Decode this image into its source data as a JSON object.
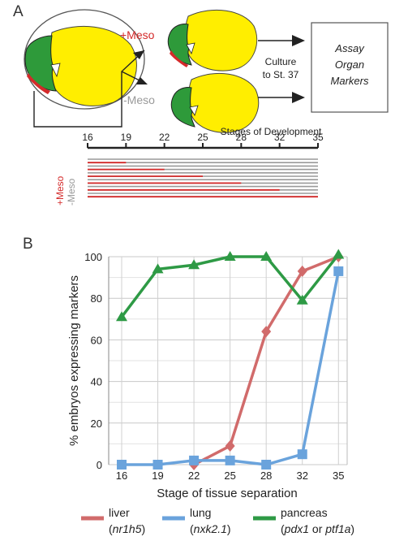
{
  "panel_a": {
    "letter": "A",
    "plus_meso": "+Meso",
    "minus_meso": "-Meso",
    "culture_line1": "Culture",
    "culture_line2": "to St. 37",
    "assay_line1": "Assay",
    "assay_line2": "Organ",
    "assay_line3": "Markers",
    "stages_title": "Stages of Development",
    "stage_ticks": [
      "16",
      "19",
      "22",
      "25",
      "28",
      "32",
      "35"
    ],
    "side_plus": "+Meso",
    "side_minus": "-Meso",
    "colors": {
      "plus": "#d42a2a",
      "minus": "#999999",
      "yellow": "#ffee00",
      "green": "#2e9a3a"
    }
  },
  "panel_b": {
    "letter": "B",
    "legend": [
      {
        "name": "liver",
        "gene": "nr1h5",
        "color": "#d16b6b"
      },
      {
        "name": "lung",
        "gene": "nxk2.1",
        "color": "#6aa3dc"
      },
      {
        "name": "pancreas",
        "gene1": "pdx1",
        "joiner": " or ",
        "gene2": "ptf1a",
        "color": "#2e9a45"
      }
    ]
  },
  "chart_data": {
    "type": "line",
    "xlabel": "Stage of tissue separation",
    "ylabel": "% embryos expressing markers",
    "categories": [
      "16",
      "19",
      "22",
      "25",
      "28",
      "32",
      "35"
    ],
    "ylim": [
      0,
      100
    ],
    "yticks": [
      "0",
      "20",
      "40",
      "60",
      "80",
      "100"
    ],
    "grid": true,
    "series": [
      {
        "name": "liver",
        "marker": "diamond",
        "color": "#d16b6b",
        "values": [
          null,
          null,
          0,
          9,
          64,
          93,
          100
        ]
      },
      {
        "name": "lung",
        "marker": "square",
        "color": "#6aa3dc",
        "values": [
          0,
          0,
          2,
          2,
          0,
          5,
          93
        ]
      },
      {
        "name": "pancreas",
        "marker": "triangle",
        "color": "#2e9a45",
        "values": [
          71,
          94,
          96,
          100,
          100,
          79,
          101
        ]
      }
    ]
  }
}
